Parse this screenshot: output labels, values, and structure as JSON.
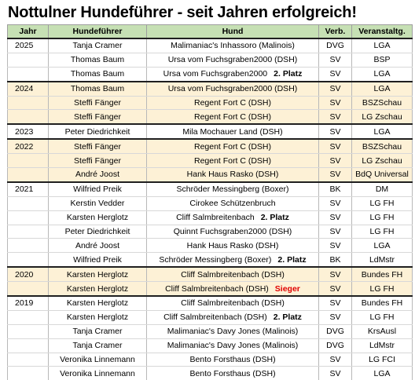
{
  "title": "Nottulner Hundeführer - seit Jahren erfolgreich!",
  "columns": [
    "Jahr",
    "Hundeführer",
    "Hund",
    "Verb.",
    "Veranstaltg."
  ],
  "rows": [
    {
      "year": "2025",
      "handler": "Tanja Cramer",
      "dog": "Malimaniac's Inhassoro (Malinois)",
      "place": "",
      "verb": "DVG",
      "event": "LGA",
      "hl": false,
      "grp": true
    },
    {
      "year": "",
      "handler": "Thomas Baum",
      "dog": "Ursa vom Fuchsgraben2000 (DSH)",
      "place": "",
      "verb": "SV",
      "event": "BSP",
      "hl": false,
      "grp": false
    },
    {
      "year": "",
      "handler": "Thomas Baum",
      "dog": "Ursa vom Fuchsgraben2000",
      "place": "2. Platz",
      "verb": "SV",
      "event": "LGA",
      "hl": false,
      "grp": false
    },
    {
      "year": "2024",
      "handler": "Thomas Baum",
      "dog": "Ursa vom Fuchsgraben2000 (DSH)",
      "place": "",
      "verb": "SV",
      "event": "LGA",
      "hl": true,
      "grp": true
    },
    {
      "year": "",
      "handler": "Steffi Fänger",
      "dog": "Regent Fort C (DSH)",
      "place": "",
      "verb": "SV",
      "event": "BSZSchau",
      "hl": true,
      "grp": false
    },
    {
      "year": "",
      "handler": "Steffi Fänger",
      "dog": "Regent Fort C (DSH)",
      "place": "",
      "verb": "SV",
      "event": "LG Zschau",
      "hl": true,
      "grp": false
    },
    {
      "year": "2023",
      "handler": "Peter Diedrichkeit",
      "dog": "Mila Mochauer Land (DSH)",
      "place": "",
      "verb": "SV",
      "event": "LGA",
      "hl": false,
      "grp": true
    },
    {
      "year": "2022",
      "handler": "Steffi Fänger",
      "dog": "Regent Fort C (DSH)",
      "place": "",
      "verb": "SV",
      "event": "BSZSchau",
      "hl": true,
      "grp": true
    },
    {
      "year": "",
      "handler": "Steffi Fänger",
      "dog": "Regent Fort C (DSH)",
      "place": "",
      "verb": "SV",
      "event": "LG Zschau",
      "hl": true,
      "grp": false
    },
    {
      "year": "",
      "handler": "André Joost",
      "dog": "Hank Haus Rasko (DSH)",
      "place": "",
      "verb": "SV",
      "event": "BdQ Universal",
      "hl": true,
      "grp": false
    },
    {
      "year": "2021",
      "handler": "Wilfried Preik",
      "dog": "Schröder Messingberg (Boxer)",
      "place": "",
      "verb": "BK",
      "event": "DM",
      "hl": false,
      "grp": true
    },
    {
      "year": "",
      "handler": "Kerstin Vedder",
      "dog": "Cirokee Schützenbruch",
      "place": "",
      "verb": "SV",
      "event": "LG FH",
      "hl": false,
      "grp": false
    },
    {
      "year": "",
      "handler": "Karsten Herglotz",
      "dog": "Cliff Salmbreitenbach",
      "place": "2. Platz",
      "verb": "SV",
      "event": "LG FH",
      "hl": false,
      "grp": false
    },
    {
      "year": "",
      "handler": "Peter Diedrichkeit",
      "dog": "Quinnt Fuchsgraben2000 (DSH)",
      "place": "",
      "verb": "SV",
      "event": "LG FH",
      "hl": false,
      "grp": false
    },
    {
      "year": "",
      "handler": "André Joost",
      "dog": "Hank Haus Rasko (DSH)",
      "place": "",
      "verb": "SV",
      "event": "LGA",
      "hl": false,
      "grp": false
    },
    {
      "year": "",
      "handler": "Wilfried Preik",
      "dog": "Schröder Messingberg (Boxer)",
      "place": "2. Platz",
      "verb": "BK",
      "event": "LdMstr",
      "hl": false,
      "grp": false
    },
    {
      "year": "2020",
      "handler": "Karsten Herglotz",
      "dog": "Cliff Salmbreitenbach (DSH)",
      "place": "",
      "verb": "SV",
      "event": "Bundes FH",
      "hl": true,
      "grp": true
    },
    {
      "year": "",
      "handler": "Karsten Herglotz",
      "dog": "Cliff Salmbreitenbach (DSH)",
      "place": "Sieger",
      "placeRed": true,
      "verb": "SV",
      "event": "LG FH",
      "hl": true,
      "grp": false
    },
    {
      "year": "2019",
      "handler": "Karsten Herglotz",
      "dog": "Cliff Salmbreitenbach (DSH)",
      "place": "",
      "verb": "SV",
      "event": "Bundes FH",
      "hl": false,
      "grp": true
    },
    {
      "year": "",
      "handler": "Karsten Herglotz",
      "dog": "Cliff Salmbreitenbach (DSH)",
      "place": "2. Platz",
      "verb": "SV",
      "event": "LG FH",
      "hl": false,
      "grp": false
    },
    {
      "year": "",
      "handler": "Tanja Cramer",
      "dog": "Malimaniac's Davy Jones (Malinois)",
      "place": "",
      "verb": "DVG",
      "event": "KrsAusl",
      "hl": false,
      "grp": false
    },
    {
      "year": "",
      "handler": "Tanja Cramer",
      "dog": "Malimaniac's Davy Jones (Malinois)",
      "place": "",
      "verb": "DVG",
      "event": "LdMstr",
      "hl": false,
      "grp": false
    },
    {
      "year": "",
      "handler": "Veronika Linnemann",
      "dog": "Bento Forsthaus (DSH)",
      "place": "",
      "verb": "SV",
      "event": "LG FCI",
      "hl": false,
      "grp": false
    },
    {
      "year": "",
      "handler": "Veronika Linnemann",
      "dog": "Bento Forsthaus (DSH)",
      "place": "",
      "verb": "SV",
      "event": "LGA",
      "hl": false,
      "grp": false
    }
  ],
  "colors": {
    "header_bg": "#c6e0b4",
    "highlight_bg": "#fdf1d6",
    "winner_text": "#e00000"
  }
}
